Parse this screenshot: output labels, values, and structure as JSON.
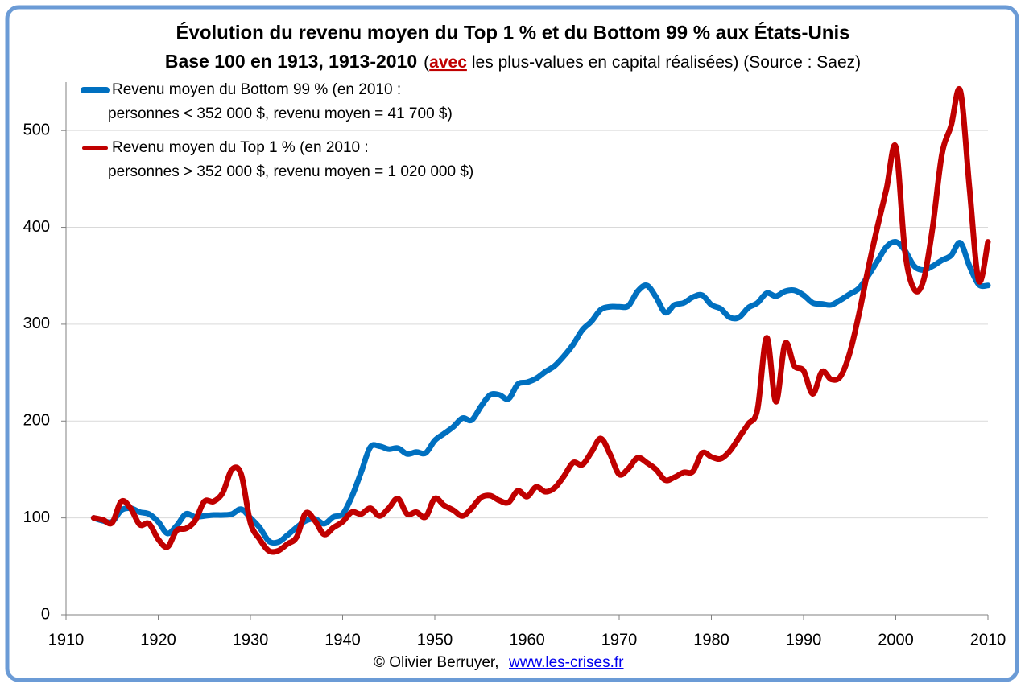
{
  "chart_data": {
    "type": "line",
    "title": "Évolution du revenu moyen du Top 1 % et du Bottom 99 % aux États-Unis",
    "subtitle_parts": [
      "Base 100 en 1913, 1913-2010",
      "(",
      "avec",
      "les plus-values en capital réalisées) (Source : Saez)"
    ],
    "credit": "© Olivier Berruyer,",
    "credit_link": "www.les-crises.fr",
    "x": [
      1913,
      1914,
      1915,
      1916,
      1917,
      1918,
      1919,
      1920,
      1921,
      1922,
      1923,
      1924,
      1925,
      1926,
      1927,
      1928,
      1929,
      1930,
      1931,
      1932,
      1933,
      1934,
      1935,
      1936,
      1937,
      1938,
      1939,
      1940,
      1941,
      1942,
      1943,
      1944,
      1945,
      1946,
      1947,
      1948,
      1949,
      1950,
      1951,
      1952,
      1953,
      1954,
      1955,
      1956,
      1957,
      1958,
      1959,
      1960,
      1961,
      1962,
      1963,
      1964,
      1965,
      1966,
      1967,
      1968,
      1969,
      1970,
      1971,
      1972,
      1973,
      1974,
      1975,
      1976,
      1977,
      1978,
      1979,
      1980,
      1981,
      1982,
      1983,
      1984,
      1985,
      1986,
      1987,
      1988,
      1989,
      1990,
      1991,
      1992,
      1993,
      1994,
      1995,
      1996,
      1997,
      1998,
      1999,
      2000,
      2001,
      2002,
      2003,
      2004,
      2005,
      2006,
      2007,
      2008,
      2009,
      2010
    ],
    "series": [
      {
        "name": "Revenu moyen du Bottom 99 % (en 2010 :",
        "name_line2": "personnes < 352 000 $, revenu moyen = 41 700 $)",
        "color": "#0070c0",
        "values": [
          100,
          97,
          96,
          108,
          110,
          106,
          104,
          96,
          84,
          92,
          104,
          101,
          102,
          103,
          103,
          104,
          109,
          100,
          90,
          76,
          75,
          82,
          90,
          97,
          99,
          94,
          101,
          104,
          122,
          147,
          173,
          174,
          171,
          172,
          166,
          168,
          167,
          180,
          187,
          194,
          203,
          201,
          215,
          227,
          227,
          223,
          238,
          240,
          244,
          251,
          257,
          267,
          279,
          294,
          303,
          315,
          318,
          318,
          319,
          334,
          340,
          328,
          312,
          320,
          322,
          328,
          330,
          320,
          316,
          307,
          307,
          317,
          322,
          332,
          329,
          334,
          335,
          330,
          322,
          321,
          320,
          325,
          331,
          337,
          350,
          365,
          380,
          385,
          376,
          360,
          356,
          360,
          366,
          371,
          384,
          360,
          341,
          340
        ]
      },
      {
        "name": "Revenu moyen du Top 1 % (en 2010 :",
        "name_line2": "personnes > 352 000 $, revenu moyen = 1 020 000 $)",
        "color": "#c00000",
        "values": [
          100,
          98,
          95,
          117,
          110,
          93,
          94,
          78,
          70,
          87,
          89,
          97,
          117,
          117,
          126,
          150,
          145,
          95,
          78,
          66,
          66,
          73,
          80,
          105,
          97,
          83,
          90,
          96,
          106,
          104,
          110,
          102,
          110,
          120,
          104,
          106,
          101,
          120,
          113,
          108,
          102,
          110,
          121,
          123,
          118,
          116,
          128,
          122,
          132,
          127,
          131,
          143,
          157,
          155,
          168,
          182,
          166,
          145,
          151,
          162,
          157,
          150,
          139,
          142,
          147,
          148,
          167,
          163,
          161,
          169,
          183,
          197,
          212,
          286,
          220,
          280,
          257,
          252,
          228,
          251,
          243,
          246,
          270,
          310,
          357,
          400,
          440,
          483,
          375,
          336,
          345,
          400,
          475,
          505,
          541,
          440,
          345,
          385
        ]
      }
    ],
    "xlim": [
      1910,
      2010
    ],
    "xticks": [
      1910,
      1920,
      1930,
      1940,
      1950,
      1960,
      1970,
      1980,
      1990,
      2000,
      2010
    ],
    "ylim": [
      0,
      550
    ],
    "yticks": [
      0,
      100,
      200,
      300,
      400,
      500
    ],
    "grid": true
  }
}
